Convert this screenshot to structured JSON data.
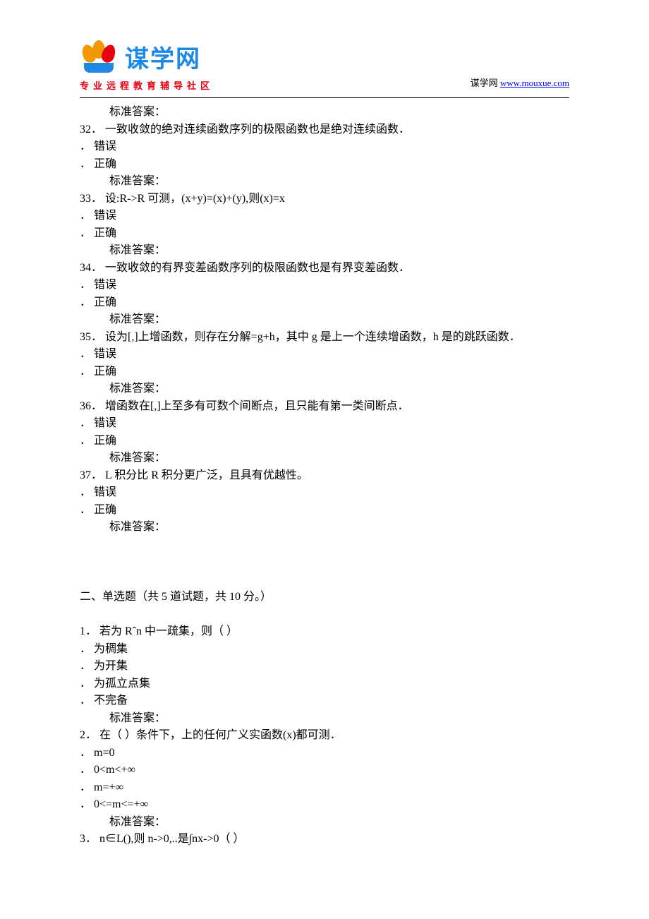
{
  "header": {
    "logo_text": "谋学网",
    "logo_sub": "www.mouxue.com",
    "tagline": "专业远程教育辅导社区",
    "right_label": "谋学网",
    "right_link": "www.mouxue.com"
  },
  "tf_questions": [
    {
      "num": "32．",
      "text": "一致收敛的绝对连续函数序列的极限函数也是绝对连续函数．",
      "options": [
        "． 错误",
        "． 正确"
      ],
      "answer_label": "标准答案："
    },
    {
      "num": "33．",
      "text": "设:R->R 可测，(x+y)=(x)+(y),则(x)=x",
      "options": [
        "． 错误",
        "． 正确"
      ],
      "answer_label": "标准答案："
    },
    {
      "num": "34．",
      "text": "一致收敛的有界变差函数序列的极限函数也是有界变差函数．",
      "options": [
        "． 错误",
        "． 正确"
      ],
      "answer_label": "标准答案："
    },
    {
      "num": "35．",
      "text": "设为[,]上增函数，则存在分解=g+h，其中 g 是上一个连续增函数，h 是的跳跃函数．",
      "options": [
        "． 错误",
        "． 正确"
      ],
      "answer_label": "标准答案："
    },
    {
      "num": "36．",
      "text": "增函数在[,]上至多有可数个间断点，且只能有第一类间断点．",
      "options": [
        "． 错误",
        "． 正确"
      ],
      "answer_label": "标准答案："
    },
    {
      "num": "37．",
      "text": "L 积分比 R 积分更广泛，且具有优越性。",
      "options": [
        "． 错误",
        "． 正确"
      ],
      "answer_label": "标准答案："
    }
  ],
  "pre_answer": "标准答案：",
  "section2": {
    "title": "二、单选题（共 5 道试题，共 10 分。）"
  },
  "mc_questions": [
    {
      "num": "1．",
      "text": "若为 Rˆn 中一疏集，则（ ）",
      "options": [
        "． 为稠集",
        "． 为开集",
        "． 为孤立点集",
        "． 不完备"
      ],
      "answer_label": "标准答案："
    },
    {
      "num": "2．",
      "text": "在（ ）条件下，上的任何广义实函数(x)都可测．",
      "options": [
        "． m=0",
        "． 0<m<+∞",
        "． m=+∞",
        "． 0<=m<=+∞"
      ],
      "answer_label": "标准答案："
    },
    {
      "num": "3．",
      "text": "n∈L(),则 n->0,..是∫nx->0（ ）",
      "options": [],
      "answer_label": ""
    }
  ]
}
